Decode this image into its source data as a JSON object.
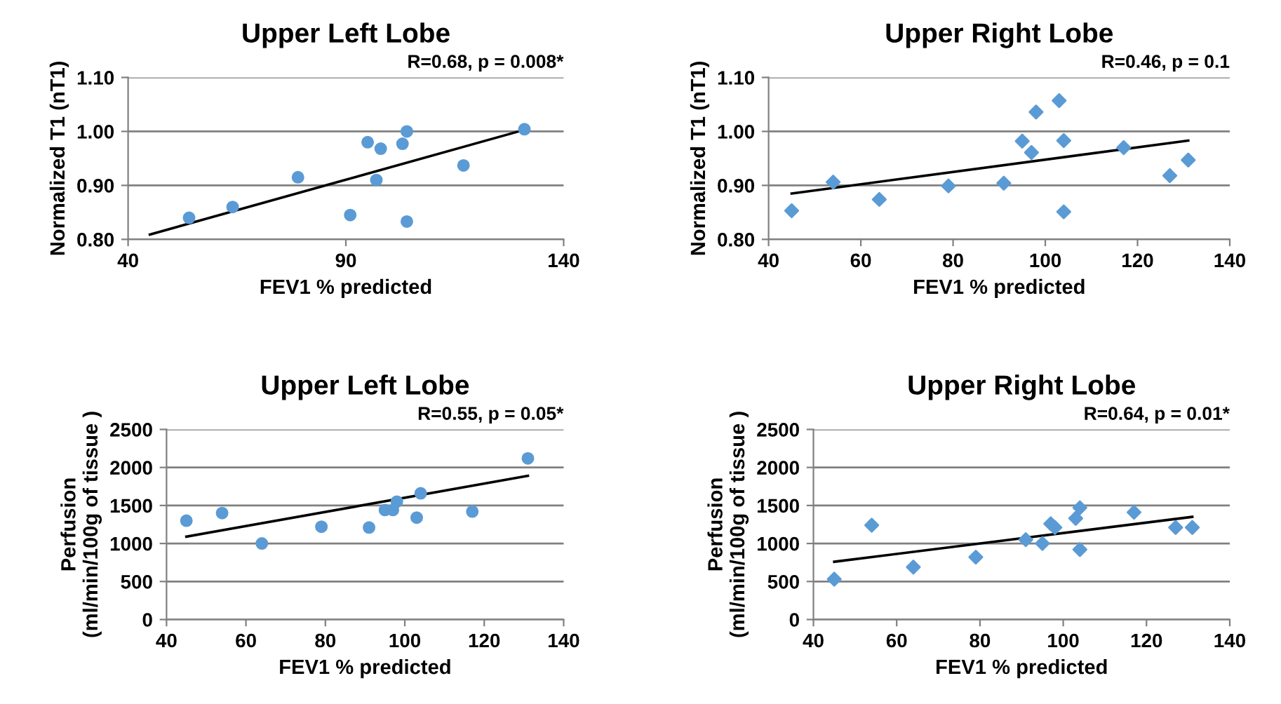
{
  "chart_data": [
    {
      "type": "scatter",
      "title": "Upper Left Lobe",
      "xlabel": "FEV1 % predicted",
      "ylabel": "Normalized T1 (nT1)",
      "annotations": [
        "R=0.68, p = 0.008*"
      ],
      "xlim": [
        40,
        140
      ],
      "xticks": [
        40,
        90,
        140
      ],
      "ylim": [
        0.8,
        1.1
      ],
      "yticks": [
        {
          "value": 0.8,
          "label": "0.80"
        },
        {
          "value": 0.9,
          "label": "0.90"
        },
        {
          "value": 1.0,
          "label": "1.00"
        },
        {
          "value": 1.1,
          "label": "1.10"
        }
      ],
      "grid": "y",
      "series": [
        {
          "color": "#5b9bd5",
          "marker": "circle",
          "x": [
            54,
            64,
            79,
            91,
            95,
            97,
            98,
            103,
            104,
            104,
            117,
            131
          ],
          "values": [
            0.84,
            0.86,
            0.915,
            0.845,
            0.98,
            0.91,
            0.968,
            0.977,
            1.0,
            0.833,
            0.937,
            1.004
          ]
        },
        {
          "type": "line",
          "color": "#000000",
          "x": [
            45,
            131
          ],
          "values": [
            0.809,
            1.003
          ]
        }
      ]
    },
    {
      "type": "scatter",
      "title": "Upper Right Lobe",
      "xlabel": "FEV1 % predicted",
      "ylabel": "Normalized T1 (nT1)",
      "annotations": [
        "R=0.46, p = 0.1"
      ],
      "xlim": [
        40,
        140
      ],
      "xticks": [
        40,
        60,
        80,
        100,
        120,
        140
      ],
      "ylim": [
        0.8,
        1.1
      ],
      "yticks": [
        {
          "value": 0.8,
          "label": "0.80"
        },
        {
          "value": 0.9,
          "label": "0.90"
        },
        {
          "value": 1.0,
          "label": "1.00"
        },
        {
          "value": 1.1,
          "label": "1.10"
        }
      ],
      "grid": "y",
      "series": [
        {
          "color": "#5b9bd5",
          "marker": "diamond",
          "x": [
            45,
            54,
            64,
            79,
            91,
            95,
            97,
            98,
            103,
            104,
            104,
            117,
            127,
            131
          ],
          "values": [
            0.853,
            0.906,
            0.874,
            0.899,
            0.904,
            0.982,
            0.961,
            1.036,
            1.057,
            0.983,
            0.851,
            0.97,
            0.918,
            0.947
          ]
        },
        {
          "type": "line",
          "color": "#000000",
          "x": [
            45,
            131
          ],
          "values": [
            0.885,
            0.983
          ]
        }
      ]
    },
    {
      "type": "scatter",
      "title": "Upper Left Lobe",
      "xlabel": "FEV1 % predicted",
      "ylabel": "Perfusion\n(ml/min/100g of tissue )",
      "annotations": [
        "R=0.55, p = 0.05*"
      ],
      "xlim": [
        40,
        140
      ],
      "xticks": [
        40,
        60,
        80,
        100,
        120,
        140
      ],
      "ylim": [
        0,
        2500
      ],
      "yticks": [
        0,
        500,
        1000,
        1500,
        2000,
        2500
      ],
      "grid": "y",
      "series": [
        {
          "color": "#5b9bd5",
          "marker": "circle",
          "x": [
            45,
            54,
            64,
            79,
            91,
            95,
            97,
            98,
            103,
            104,
            117,
            131
          ],
          "values": [
            1300,
            1400,
            1000,
            1220,
            1210,
            1440,
            1440,
            1550,
            1340,
            1660,
            1420,
            2120
          ]
        },
        {
          "type": "line",
          "color": "#000000",
          "x": [
            45,
            131
          ],
          "values": [
            1090,
            1890
          ]
        }
      ]
    },
    {
      "type": "scatter",
      "title": "Upper Right Lobe",
      "xlabel": "FEV1 % predicted",
      "ylabel": "Perfusion\n(ml/min/100g of tissue )",
      "annotations": [
        "R=0.64, p = 0.01*"
      ],
      "xlim": [
        40,
        140
      ],
      "xticks": [
        40,
        60,
        80,
        100,
        120,
        140
      ],
      "ylim": [
        0,
        2500
      ],
      "yticks": [
        0,
        500,
        1000,
        1500,
        2000,
        2500
      ],
      "grid": "y",
      "series": [
        {
          "color": "#5b9bd5",
          "marker": "diamond",
          "x": [
            45,
            54,
            64,
            79,
            91,
            95,
            97,
            98,
            103,
            104,
            104,
            117,
            127,
            131
          ],
          "values": [
            530,
            1240,
            690,
            820,
            1050,
            1000,
            1260,
            1210,
            1330,
            1470,
            920,
            1410,
            1210,
            1210
          ]
        },
        {
          "type": "line",
          "color": "#000000",
          "x": [
            45,
            131
          ],
          "values": [
            760,
            1350
          ]
        }
      ]
    }
  ]
}
